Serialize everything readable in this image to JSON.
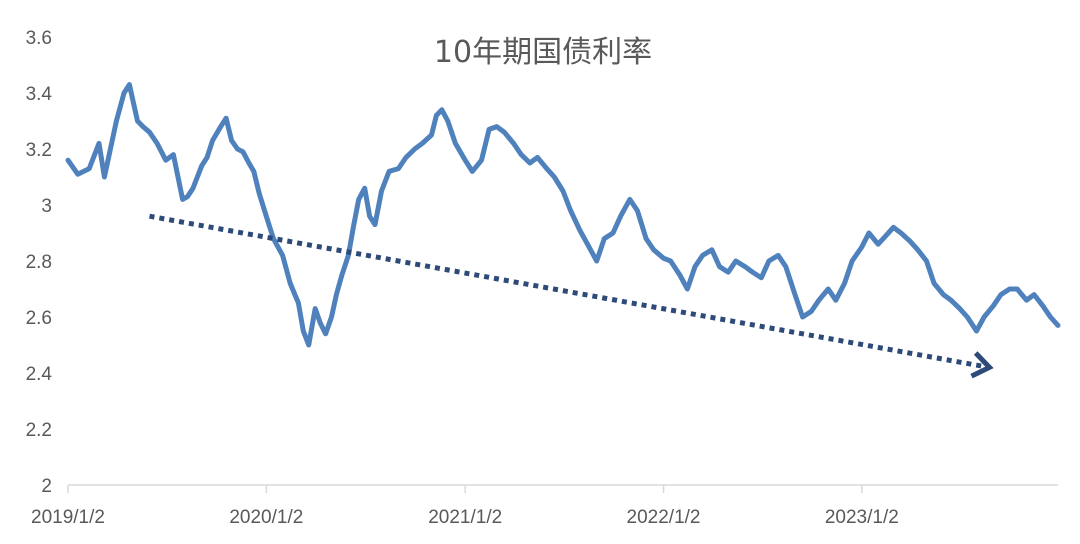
{
  "chart_data": {
    "type": "line",
    "title": "10年期国债利率",
    "xlabel": "",
    "ylabel": "",
    "ylim": [
      2,
      3.6
    ],
    "y_ticks": [
      "2",
      "2.2",
      "2.4",
      "2.6",
      "2.8",
      "3",
      "3.2",
      "3.4",
      "3.6"
    ],
    "x_tick_labels": [
      "2019/1/2",
      "2020/1/2",
      "2021/1/2",
      "2022/1/2",
      "2023/1/2"
    ],
    "grid": false,
    "legend": "none",
    "colors": {
      "series": "#4f81bd",
      "trend": "#2e4a78",
      "axis": "#d9d9d9",
      "text": "#595959"
    },
    "series": [
      {
        "x": [
          "2019/1/2",
          "2019/1/20",
          "2019/2/10",
          "2019/2/28",
          "2019/3/10",
          "2019/4/1",
          "2019/4/15",
          "2019/4/25",
          "2019/5/10",
          "2019/5/20",
          "2019/6/1",
          "2019/6/15",
          "2019/7/1",
          "2019/7/15",
          "2019/8/1",
          "2019/8/10",
          "2019/8/20",
          "2019/9/5",
          "2019/9/15",
          "2019/9/25",
          "2019/10/10",
          "2019/10/20",
          "2019/10/30",
          "2019/11/10",
          "2019/11/20",
          "2019/12/1",
          "2019/12/10",
          "2019/12/20",
          "2020/1/2",
          "2020/1/15",
          "2020/2/1",
          "2020/2/15",
          "2020/3/1",
          "2020/3/10",
          "2020/3/20",
          "2020/4/1",
          "2020/4/10",
          "2020/4/20",
          "2020/5/1",
          "2020/5/10",
          "2020/5/20",
          "2020/6/1",
          "2020/6/10",
          "2020/6/20",
          "2020/7/1",
          "2020/7/10",
          "2020/7/20",
          "2020/8/1",
          "2020/8/15",
          "2020/9/1",
          "2020/9/15",
          "2020/10/1",
          "2020/10/15",
          "2020/11/1",
          "2020/11/10",
          "2020/11/20",
          "2020/12/1",
          "2020/12/15",
          "2021/1/2",
          "2021/1/15",
          "2021/2/1",
          "2021/2/15",
          "2021/3/1",
          "2021/3/15",
          "2021/4/1",
          "2021/4/15",
          "2021/5/1",
          "2021/5/15",
          "2021/6/1",
          "2021/6/15",
          "2021/7/1",
          "2021/7/15",
          "2021/8/1",
          "2021/8/15",
          "2021/9/1",
          "2021/9/15",
          "2021/10/1",
          "2021/10/15",
          "2021/11/1",
          "2021/11/15",
          "2021/12/1",
          "2021/12/15",
          "2022/1/2",
          "2022/1/15",
          "2022/2/1",
          "2022/2/15",
          "2022/3/1",
          "2022/3/15",
          "2022/4/1",
          "2022/4/15",
          "2022/5/1",
          "2022/5/15",
          "2022/6/1",
          "2022/6/15",
          "2022/7/1",
          "2022/7/15",
          "2022/8/1",
          "2022/8/15",
          "2022/9/1",
          "2022/9/15",
          "2022/10/1",
          "2022/10/15",
          "2022/11/1",
          "2022/11/15",
          "2022/12/1",
          "2022/12/15",
          "2023/1/2",
          "2023/1/15",
          "2023/2/1",
          "2023/2/15",
          "2023/3/1",
          "2023/3/15",
          "2023/4/1",
          "2023/4/15",
          "2023/5/1",
          "2023/5/15",
          "2023/6/1",
          "2023/6/15",
          "2023/7/1",
          "2023/7/15",
          "2023/8/1",
          "2023/8/15",
          "2023/9/1",
          "2023/9/15",
          "2023/10/1",
          "2023/10/15",
          "2023/11/1",
          "2023/11/15",
          "2023/12/1",
          "2023/12/15",
          "2023/12/29"
        ],
        "y": [
          3.16,
          3.11,
          3.13,
          3.22,
          3.1,
          3.3,
          3.4,
          3.43,
          3.3,
          3.28,
          3.26,
          3.22,
          3.16,
          3.18,
          3.02,
          3.03,
          3.06,
          3.14,
          3.17,
          3.23,
          3.28,
          3.31,
          3.23,
          3.2,
          3.19,
          3.15,
          3.12,
          3.04,
          2.96,
          2.88,
          2.82,
          2.72,
          2.65,
          2.55,
          2.5,
          2.63,
          2.58,
          2.54,
          2.6,
          2.68,
          2.75,
          2.82,
          2.92,
          3.02,
          3.06,
          2.96,
          2.93,
          3.05,
          3.12,
          3.13,
          3.17,
          3.2,
          3.22,
          3.25,
          3.32,
          3.34,
          3.3,
          3.22,
          3.16,
          3.12,
          3.16,
          3.27,
          3.28,
          3.26,
          3.22,
          3.18,
          3.15,
          3.17,
          3.13,
          3.1,
          3.05,
          2.98,
          2.91,
          2.86,
          2.8,
          2.88,
          2.9,
          2.96,
          3.02,
          2.98,
          2.88,
          2.84,
          2.81,
          2.8,
          2.75,
          2.7,
          2.78,
          2.82,
          2.84,
          2.78,
          2.76,
          2.8,
          2.78,
          2.76,
          2.74,
          2.8,
          2.82,
          2.78,
          2.68,
          2.6,
          2.62,
          2.66,
          2.7,
          2.66,
          2.72,
          2.8,
          2.85,
          2.9,
          2.86,
          2.89,
          2.92,
          2.9,
          2.87,
          2.84,
          2.8,
          2.72,
          2.68,
          2.66,
          2.63,
          2.6,
          2.55,
          2.6,
          2.64,
          2.68,
          2.7,
          2.7,
          2.66,
          2.68,
          2.64,
          2.6,
          2.57
        ]
      }
    ],
    "trend": {
      "start": {
        "x": "2019/6/1",
        "y": 2.96
      },
      "end": {
        "x": "2023/8/25",
        "y": 2.42
      }
    }
  }
}
